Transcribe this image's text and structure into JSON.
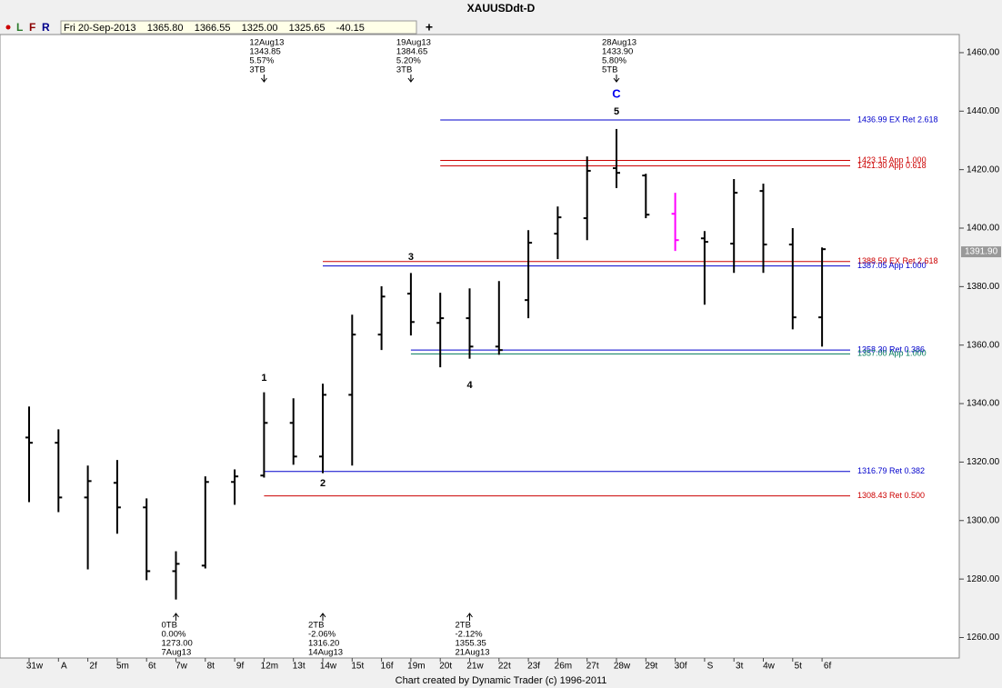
{
  "chart_data": {
    "type": "ohlc",
    "title": "XAUUSDdt-D",
    "footer": "Chart created by Dynamic Trader  (c) 1996-2011",
    "toolbar": {
      "buttons": [
        "L",
        "F",
        "R"
      ],
      "readout": "Fri 20-Sep-2013    1365.80    1366.55    1325.00    1325.65    -40.15",
      "add": "+"
    },
    "categories": [
      "31w",
      "A",
      "2f",
      "5m",
      "6t",
      "7w",
      "8t",
      "9f",
      "12m",
      "13t",
      "14w",
      "15t",
      "16f",
      "19m",
      "20t",
      "21w",
      "22t",
      "23f",
      "26m",
      "27t",
      "28w",
      "29t",
      "30f",
      "S",
      "3t",
      "4w",
      "5t",
      "6f"
    ],
    "open": [
      1328.4,
      1326.6,
      1307.9,
      1312.9,
      1304.5,
      1282.7,
      1284.6,
      1313.2,
      1315.4,
      1333.4,
      1321.9,
      1343.0,
      1363.6,
      1377.6,
      1367.6,
      1369.2,
      1359.5,
      1375.4,
      1398.1,
      1403.4,
      1420.5,
      1418.0,
      1404.9,
      1396.5,
      1394.7,
      1412.7,
      1394.4,
      1369.5
    ],
    "high": [
      1339.0,
      1331.2,
      1318.8,
      1320.7,
      1307.6,
      1289.5,
      1315.1,
      1317.5,
      1343.85,
      1341.8,
      1346.8,
      1370.4,
      1380.1,
      1384.65,
      1377.9,
      1379.4,
      1381.9,
      1399.3,
      1407.4,
      1424.5,
      1433.9,
      1418.6,
      1412.1,
      1399.0,
      1416.8,
      1415.2,
      1400.0,
      1393.4
    ],
    "low": [
      1306.3,
      1302.9,
      1283.3,
      1295.5,
      1279.6,
      1273.0,
      1283.6,
      1305.4,
      1314.7,
      1319.1,
      1316.2,
      1318.8,
      1358.3,
      1363.3,
      1352.4,
      1355.35,
      1356.7,
      1369.2,
      1389.4,
      1395.9,
      1413.7,
      1403.4,
      1392.2,
      1373.8,
      1384.7,
      1384.7,
      1365.4,
      1359.5
    ],
    "close": [
      1326.6,
      1307.9,
      1313.5,
      1304.5,
      1282.7,
      1285.2,
      1313.2,
      1315.1,
      1333.4,
      1321.9,
      1343.0,
      1363.6,
      1376.6,
      1367.9,
      1369.2,
      1359.5,
      1358.3,
      1395.0,
      1403.7,
      1419.6,
      1418.9,
      1404.6,
      1395.9,
      1395.3,
      1412.1,
      1394.4,
      1369.5,
      1392.8
    ],
    "bar_colors": [
      "#000000",
      "#000000",
      "#000000",
      "#000000",
      "#000000",
      "#000000",
      "#000000",
      "#000000",
      "#000000",
      "#000000",
      "#000000",
      "#000000",
      "#000000",
      "#000000",
      "#000000",
      "#000000",
      "#000000",
      "#000000",
      "#000000",
      "#000000",
      "#000000",
      "#000000",
      "#ff00ff",
      "#000000",
      "#000000",
      "#000000",
      "#000000",
      "#000000"
    ],
    "ylim": [
      1253,
      1466.2
    ],
    "yticks": [
      {
        "value": 1260,
        "label": "1260.00"
      },
      {
        "value": 1280,
        "label": "1280.00"
      },
      {
        "value": 1300,
        "label": "1300.00"
      },
      {
        "value": 1320,
        "label": "1320.00"
      },
      {
        "value": 1340,
        "label": "1340.00"
      },
      {
        "value": 1360,
        "label": "1360.00"
      },
      {
        "value": 1380,
        "label": "1380.00"
      },
      {
        "value": 1400,
        "label": "1400.00"
      },
      {
        "value": 1420,
        "label": "1420.00"
      },
      {
        "value": 1440,
        "label": "1440.00"
      },
      {
        "value": 1460,
        "label": "1460.00"
      }
    ],
    "last_price": {
      "value": 1391.9,
      "label": "1391.90"
    },
    "levels": [
      {
        "value": 1436.99,
        "label": "1436.99 EX Ret 2.618",
        "color": "#0000cc"
      },
      {
        "value": 1423.15,
        "label": "1423.15 App 1.000",
        "color": "#cc0000"
      },
      {
        "value": 1421.3,
        "label": "1421.30 App 0.618",
        "color": "#cc0000"
      },
      {
        "value": 1388.59,
        "label": "1388.59 EX Ret 2.618",
        "color": "#cc0000"
      },
      {
        "value": 1387.05,
        "label": "1387.05 App 1.000",
        "color": "#0000cc"
      },
      {
        "value": 1358.3,
        "label": "1358.30 Ret 0.386",
        "color": "#0000cc"
      },
      {
        "value": 1357.0,
        "label": "1357.00 App 1.000",
        "color": "#007a5a"
      },
      {
        "value": 1316.79,
        "label": "1316.79 Ret 0.382",
        "color": "#0000cc"
      },
      {
        "value": 1308.43,
        "label": "1308.43 Ret 0.500",
        "color": "#cc0000"
      }
    ],
    "wave_labels": [
      "1",
      "2",
      "3",
      "4",
      "5",
      "C"
    ],
    "swing_high_notes": [
      [
        "12Aug13",
        "1343.85",
        "5.57%",
        "3TB"
      ],
      [
        "19Aug13",
        "1384.65",
        "5.20%",
        "3TB"
      ],
      [
        "28Aug13",
        "1433.90",
        "5.80%",
        "5TB"
      ]
    ],
    "swing_low_notes": [
      [
        "0TB",
        "0.00%",
        "1273.00",
        "7Aug13"
      ],
      [
        "2TB",
        "-2.06%",
        "1316.20",
        "14Aug13"
      ],
      [
        "2TB",
        "-2.12%",
        "1355.35",
        "21Aug13"
      ]
    ]
  }
}
